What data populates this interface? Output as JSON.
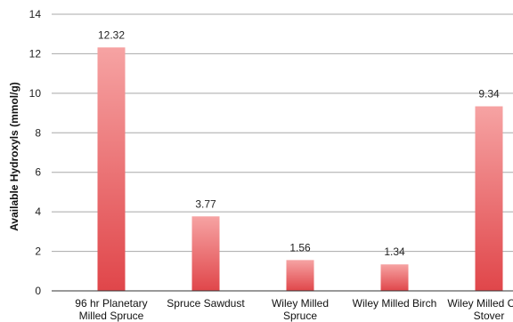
{
  "chart_data": {
    "type": "bar",
    "ylabel": "Available Hydroxyls (mmol/g)",
    "xlabel": "",
    "ylim": [
      0,
      14
    ],
    "yticks": [
      0,
      2,
      4,
      6,
      8,
      10,
      12,
      14
    ],
    "grid": true,
    "categories": [
      [
        "96 hr Planetary",
        "Milled Spruce"
      ],
      [
        "Spruce Sawdust"
      ],
      [
        "Wiley Milled",
        "Spruce"
      ],
      [
        "Wiley Milled Birch"
      ],
      [
        "Wiley Milled Corn",
        "Stover"
      ]
    ],
    "values": [
      12.32,
      3.77,
      1.56,
      1.34,
      9.34
    ],
    "data_labels": [
      "12.32",
      "3.77",
      "1.56",
      "1.34",
      "9.34"
    ],
    "colors": {
      "bar_top": "#f6a3a3",
      "bar_bottom": "#e0464a",
      "grid": "#a8a8a8",
      "axis": "#333333"
    }
  }
}
